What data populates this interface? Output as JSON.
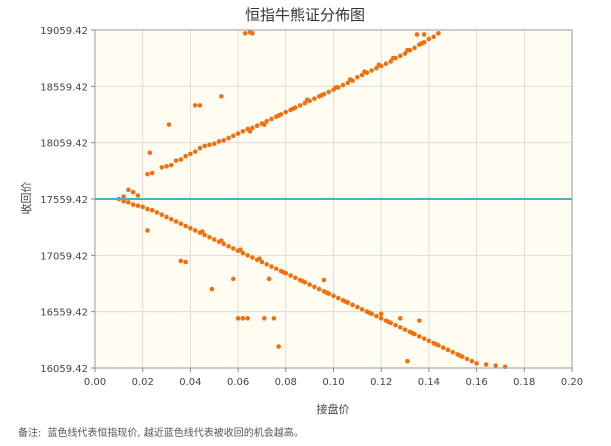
{
  "chart_data": {
    "type": "scatter",
    "title": "恒指牛熊证分佈图",
    "xlabel": "接盘价",
    "ylabel": "收回价",
    "xlim": [
      0,
      0.2
    ],
    "ylim": [
      16059.42,
      19059.42
    ],
    "x_ticks": [
      "0.00",
      "0.02",
      "0.04",
      "0.06",
      "0.08",
      "0.10",
      "0.12",
      "0.14",
      "0.16",
      "0.18",
      "0.20"
    ],
    "y_ticks": [
      "16059.42",
      "16559.42",
      "17059.42",
      "17559.42",
      "18059.42",
      "18559.42",
      "19059.42"
    ],
    "x_tick_values": [
      0,
      0.02,
      0.04,
      0.06,
      0.08,
      0.1,
      0.12,
      0.14,
      0.16,
      0.18,
      0.2
    ],
    "y_tick_values": [
      16059.42,
      16559.42,
      17059.42,
      17559.42,
      18059.42,
      18559.42,
      19059.42
    ],
    "grid": true,
    "reference_line": {
      "y": 17559.42,
      "color": "#4aaec8"
    },
    "point_color": "#f07010",
    "plot_background": "#fffdf2",
    "series": [
      {
        "name": "",
        "points": [
          [
            0.01,
            17559
          ],
          [
            0.012,
            17580
          ],
          [
            0.014,
            17640
          ],
          [
            0.016,
            17620
          ],
          [
            0.018,
            17590
          ],
          [
            0.022,
            17780
          ],
          [
            0.024,
            17790
          ],
          [
            0.028,
            17840
          ],
          [
            0.03,
            17850
          ],
          [
            0.032,
            17860
          ],
          [
            0.034,
            17900
          ],
          [
            0.036,
            17910
          ],
          [
            0.038,
            17940
          ],
          [
            0.04,
            17960
          ],
          [
            0.042,
            17980
          ],
          [
            0.044,
            18010
          ],
          [
            0.046,
            18030
          ],
          [
            0.048,
            18040
          ],
          [
            0.05,
            18050
          ],
          [
            0.052,
            18070
          ],
          [
            0.054,
            18080
          ],
          [
            0.056,
            18100
          ],
          [
            0.058,
            18120
          ],
          [
            0.06,
            18140
          ],
          [
            0.062,
            18160
          ],
          [
            0.064,
            18180
          ],
          [
            0.066,
            18190
          ],
          [
            0.068,
            18210
          ],
          [
            0.07,
            18230
          ],
          [
            0.072,
            18250
          ],
          [
            0.074,
            18270
          ],
          [
            0.076,
            18290
          ],
          [
            0.078,
            18310
          ],
          [
            0.08,
            18330
          ],
          [
            0.082,
            18350
          ],
          [
            0.084,
            18370
          ],
          [
            0.086,
            18390
          ],
          [
            0.088,
            18410
          ],
          [
            0.09,
            18430
          ],
          [
            0.092,
            18450
          ],
          [
            0.094,
            18470
          ],
          [
            0.096,
            18490
          ],
          [
            0.098,
            18510
          ],
          [
            0.1,
            18530
          ],
          [
            0.102,
            18550
          ],
          [
            0.104,
            18570
          ],
          [
            0.106,
            18590
          ],
          [
            0.108,
            18610
          ],
          [
            0.11,
            18640
          ],
          [
            0.112,
            18660
          ],
          [
            0.114,
            18680
          ],
          [
            0.116,
            18700
          ],
          [
            0.118,
            18720
          ],
          [
            0.12,
            18740
          ],
          [
            0.122,
            18760
          ],
          [
            0.124,
            18780
          ],
          [
            0.126,
            18810
          ],
          [
            0.128,
            18830
          ],
          [
            0.13,
            18850
          ],
          [
            0.132,
            18880
          ],
          [
            0.134,
            18900
          ],
          [
            0.136,
            18930
          ],
          [
            0.138,
            18950
          ],
          [
            0.14,
            18980
          ],
          [
            0.142,
            19000
          ],
          [
            0.144,
            19030
          ],
          [
            0.065,
            18160
          ],
          [
            0.071,
            18220
          ],
          [
            0.077,
            18300
          ],
          [
            0.083,
            18360
          ],
          [
            0.089,
            18440
          ],
          [
            0.095,
            18480
          ],
          [
            0.101,
            18550
          ],
          [
            0.107,
            18620
          ],
          [
            0.113,
            18690
          ],
          [
            0.119,
            18750
          ],
          [
            0.125,
            18810
          ],
          [
            0.131,
            18880
          ],
          [
            0.137,
            18940
          ],
          [
            0.023,
            17970
          ],
          [
            0.031,
            18220
          ],
          [
            0.042,
            18390
          ],
          [
            0.044,
            18390
          ],
          [
            0.053,
            18470
          ],
          [
            0.063,
            19030
          ],
          [
            0.065,
            19040
          ],
          [
            0.066,
            19030
          ],
          [
            0.135,
            19020
          ],
          [
            0.138,
            19020
          ],
          [
            0.012,
            17540
          ],
          [
            0.014,
            17530
          ],
          [
            0.016,
            17510
          ],
          [
            0.018,
            17500
          ],
          [
            0.02,
            17490
          ],
          [
            0.022,
            17470
          ],
          [
            0.024,
            17460
          ],
          [
            0.026,
            17440
          ],
          [
            0.028,
            17420
          ],
          [
            0.03,
            17400
          ],
          [
            0.032,
            17380
          ],
          [
            0.034,
            17360
          ],
          [
            0.036,
            17340
          ],
          [
            0.038,
            17320
          ],
          [
            0.04,
            17300
          ],
          [
            0.042,
            17280
          ],
          [
            0.044,
            17260
          ],
          [
            0.046,
            17240
          ],
          [
            0.048,
            17220
          ],
          [
            0.05,
            17200
          ],
          [
            0.052,
            17180
          ],
          [
            0.054,
            17160
          ],
          [
            0.056,
            17140
          ],
          [
            0.058,
            17120
          ],
          [
            0.06,
            17100
          ],
          [
            0.062,
            17080
          ],
          [
            0.064,
            17060
          ],
          [
            0.066,
            17040
          ],
          [
            0.068,
            17020
          ],
          [
            0.07,
            17000
          ],
          [
            0.072,
            16980
          ],
          [
            0.074,
            16960
          ],
          [
            0.076,
            16940
          ],
          [
            0.078,
            16920
          ],
          [
            0.08,
            16900
          ],
          [
            0.082,
            16880
          ],
          [
            0.084,
            16860
          ],
          [
            0.086,
            16840
          ],
          [
            0.088,
            16820
          ],
          [
            0.09,
            16800
          ],
          [
            0.092,
            16780
          ],
          [
            0.094,
            16760
          ],
          [
            0.096,
            16740
          ],
          [
            0.098,
            16720
          ],
          [
            0.1,
            16700
          ],
          [
            0.102,
            16680
          ],
          [
            0.104,
            16660
          ],
          [
            0.106,
            16640
          ],
          [
            0.108,
            16620
          ],
          [
            0.11,
            16600
          ],
          [
            0.112,
            16580
          ],
          [
            0.114,
            16560
          ],
          [
            0.116,
            16540
          ],
          [
            0.118,
            16520
          ],
          [
            0.12,
            16500
          ],
          [
            0.122,
            16480
          ],
          [
            0.124,
            16460
          ],
          [
            0.126,
            16440
          ],
          [
            0.128,
            16420
          ],
          [
            0.13,
            16400
          ],
          [
            0.132,
            16380
          ],
          [
            0.134,
            16360
          ],
          [
            0.136,
            16340
          ],
          [
            0.138,
            16320
          ],
          [
            0.14,
            16300
          ],
          [
            0.142,
            16280
          ],
          [
            0.144,
            16260
          ],
          [
            0.146,
            16240
          ],
          [
            0.148,
            16220
          ],
          [
            0.15,
            16200
          ],
          [
            0.152,
            16180
          ],
          [
            0.154,
            16160
          ],
          [
            0.156,
            16140
          ],
          [
            0.158,
            16120
          ],
          [
            0.16,
            16100
          ],
          [
            0.164,
            16090
          ],
          [
            0.168,
            16080
          ],
          [
            0.172,
            16070
          ],
          [
            0.045,
            17270
          ],
          [
            0.053,
            17190
          ],
          [
            0.061,
            17110
          ],
          [
            0.069,
            17030
          ],
          [
            0.079,
            16910
          ],
          [
            0.087,
            16830
          ],
          [
            0.097,
            16730
          ],
          [
            0.105,
            16650
          ],
          [
            0.115,
            16550
          ],
          [
            0.123,
            16470
          ],
          [
            0.133,
            16370
          ],
          [
            0.143,
            16270
          ],
          [
            0.153,
            16170
          ],
          [
            0.022,
            17280
          ],
          [
            0.036,
            17010
          ],
          [
            0.038,
            17000
          ],
          [
            0.049,
            16760
          ],
          [
            0.058,
            16850
          ],
          [
            0.06,
            16500
          ],
          [
            0.062,
            16500
          ],
          [
            0.064,
            16500
          ],
          [
            0.071,
            16500
          ],
          [
            0.073,
            16850
          ],
          [
            0.075,
            16500
          ],
          [
            0.077,
            16250
          ],
          [
            0.096,
            16840
          ],
          [
            0.12,
            16540
          ],
          [
            0.128,
            16500
          ],
          [
            0.131,
            16120
          ],
          [
            0.136,
            16480
          ]
        ]
      }
    ]
  },
  "note": {
    "label": "备注:",
    "text": "蓝色线代表恒指现价, 越近蓝色线代表被收回的机会越高。"
  }
}
